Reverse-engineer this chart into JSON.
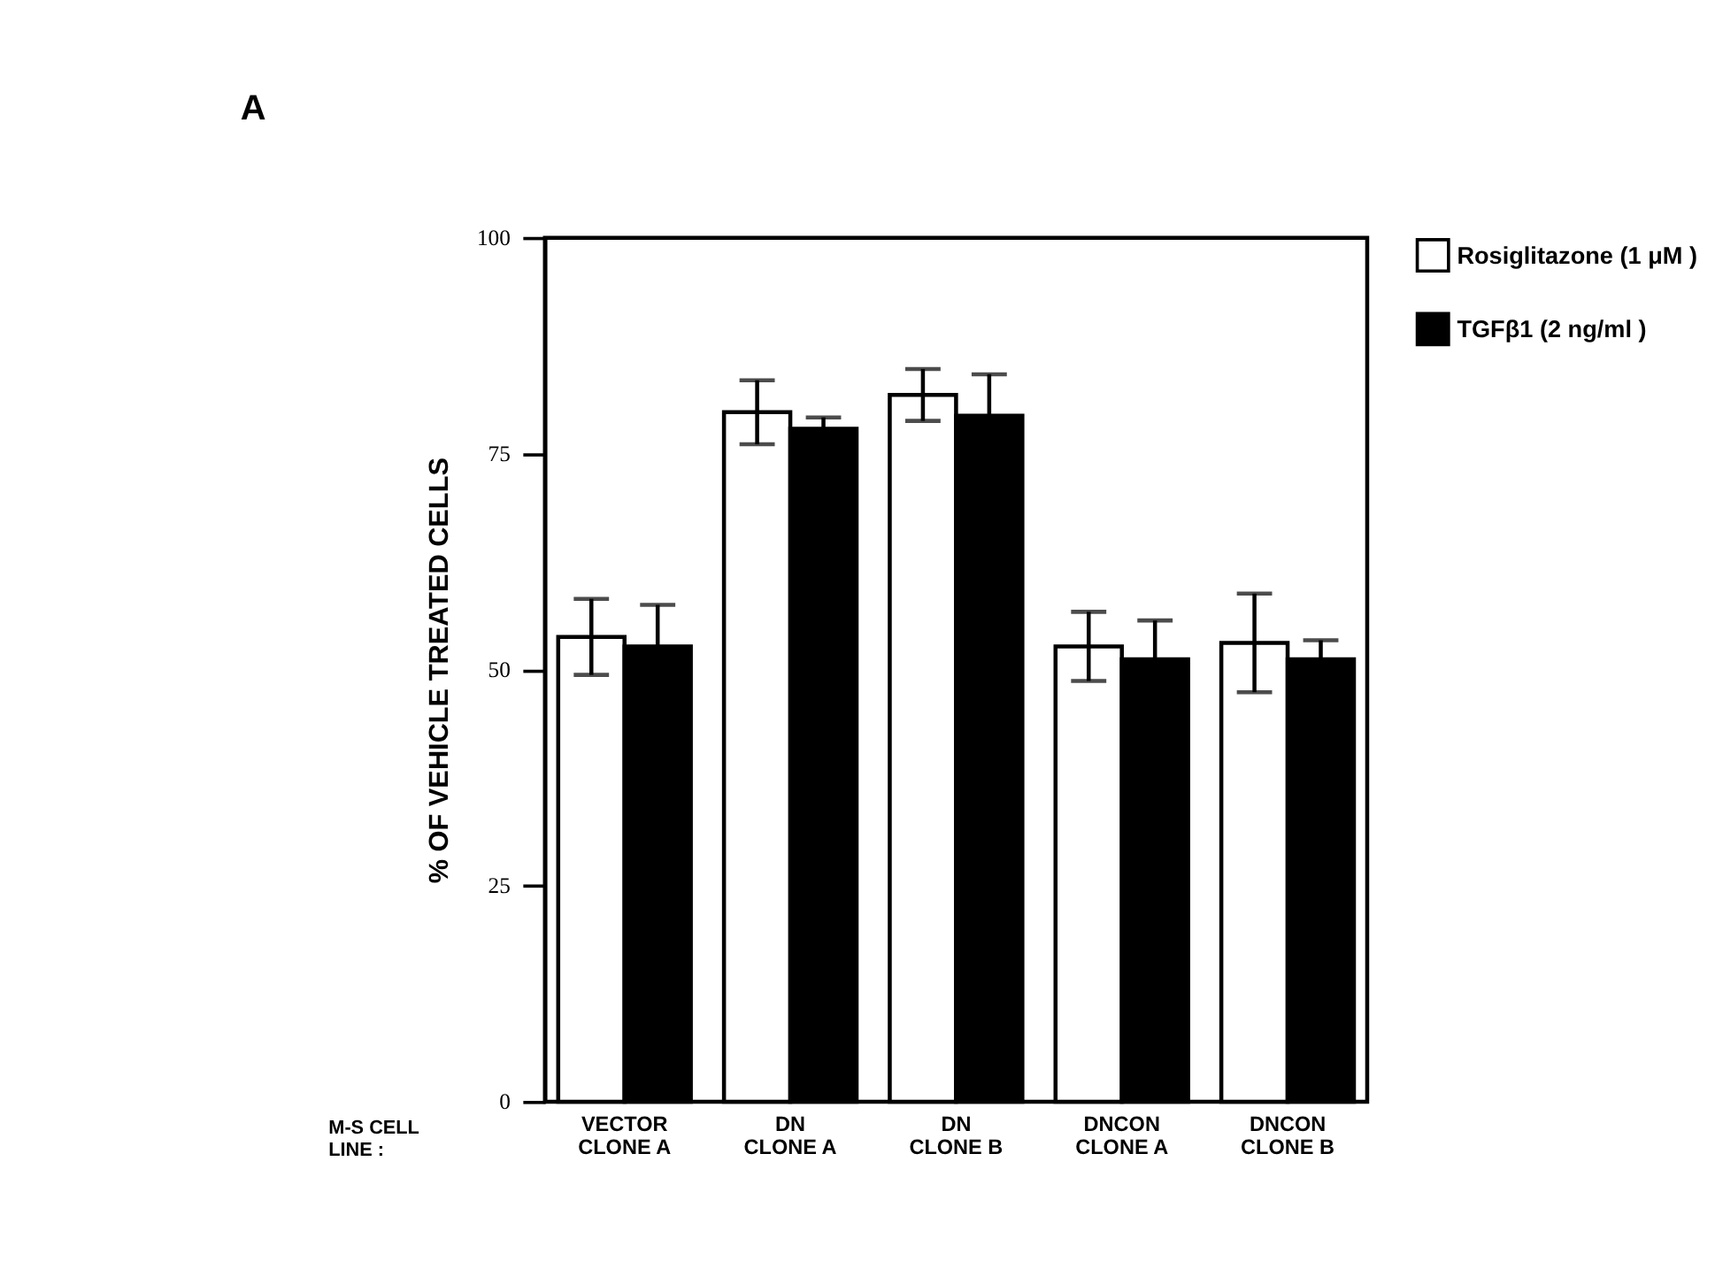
{
  "chart_data": {
    "type": "bar",
    "title": "A",
    "ylabel": "% OF VEHICLE TREATED CELLS",
    "categories": [
      "VECTOR\nCLONE A",
      "DN\nCLONE A",
      "DN\nCLONE B",
      "DNCON\nCLONE A",
      "DNCON\nCLONE B"
    ],
    "series": [
      {
        "name": "Rosiglitazone (1 μM )",
        "color": "#ffffff",
        "values": [
          53.8,
          79.8,
          81.8,
          52.7,
          53.1
        ],
        "errors": [
          4.4,
          3.7,
          3,
          4,
          5.7
        ]
      },
      {
        "name": "TGFβ1 (2 ng/ml )",
        "color": "#000000",
        "values": [
          52.7,
          77.9,
          79.4,
          51.2,
          51.2
        ],
        "errors": [
          4.8,
          1.3,
          4.8,
          4.5,
          2.2
        ]
      }
    ],
    "ylim": [
      0,
      100
    ],
    "yticks": [
      0,
      25,
      50,
      75,
      100
    ],
    "grid": false,
    "legend": "top right",
    "annotations": [
      "M-S CELL\nLINE :"
    ]
  }
}
